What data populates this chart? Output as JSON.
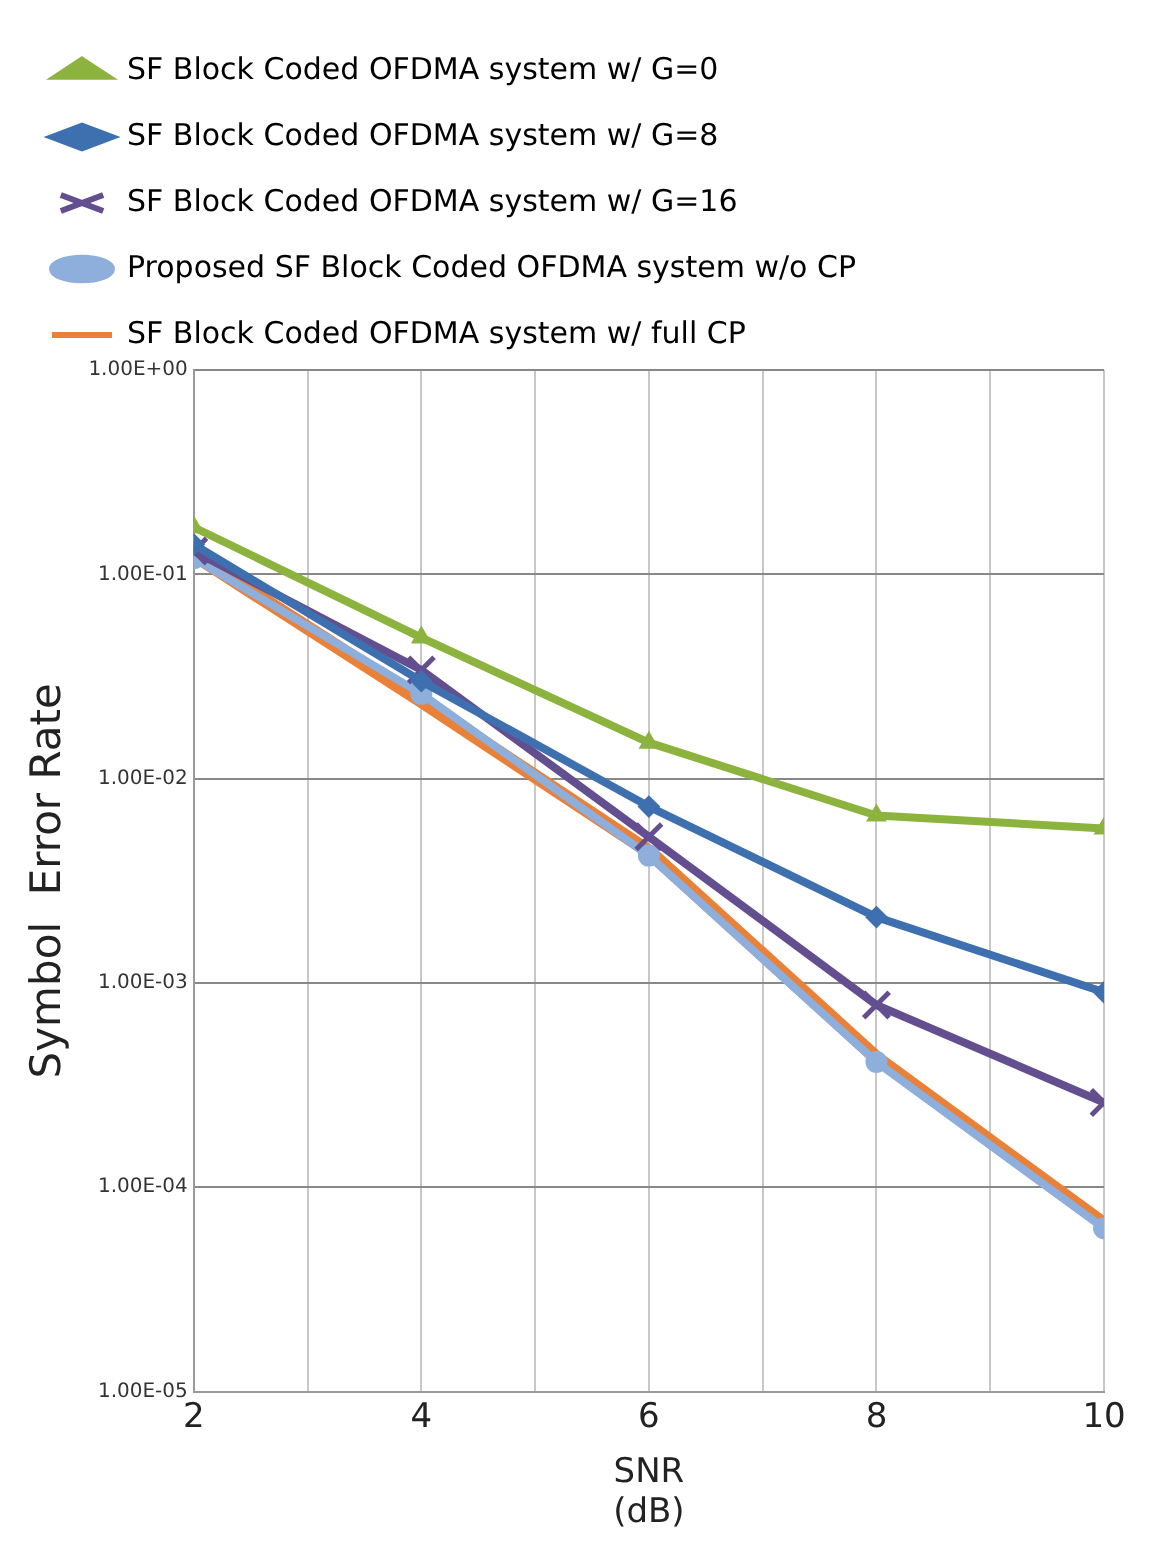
{
  "chart_data": {
    "type": "line",
    "xlabel": "SNR\n(dB)",
    "ylabel": "Symbol  Error Rate",
    "x": [
      2,
      4,
      6,
      8,
      10
    ],
    "series": [
      {
        "name": "SF Block Coded OFDMA system w/ G=0",
        "color": "#8db33f",
        "marker": "triangle",
        "values": [
          0.17,
          0.049,
          0.015,
          0.0066,
          0.0057
        ]
      },
      {
        "name": "SF Block Coded OFDMA system w/ G=8",
        "color": "#3e70b0",
        "marker": "diamond",
        "values": [
          0.14,
          0.03,
          0.0073,
          0.0021,
          0.0009
        ]
      },
      {
        "name": "SF Block Coded OFDMA system w/ G=16",
        "color": "#634f8f",
        "marker": "cross",
        "values": [
          0.13,
          0.034,
          0.0052,
          0.00078,
          0.00026
        ]
      },
      {
        "name": "Proposed SF Block Coded OFDMA system w/o CP",
        "color": "#8eaedb",
        "marker": "circle",
        "values": [
          0.12,
          0.026,
          0.0042,
          0.00041,
          6.3e-05
        ]
      },
      {
        "name": "SF Block Coded OFDMA system w/ full CP",
        "color": "#ea8139",
        "marker": "none",
        "values": [
          0.125,
          0.024,
          0.0044,
          0.00043,
          6.6e-05
        ]
      }
    ],
    "log": "y",
    "xlim": [
      2,
      10
    ],
    "xticks": [
      2,
      {
        "value": 3,
        "label": null
      },
      4,
      {
        "value": 5,
        "label": null
      },
      6,
      {
        "value": 7,
        "label": null
      },
      8,
      {
        "value": 9,
        "label": null
      },
      10
    ],
    "ylim": [
      1e-05,
      1
    ],
    "yticks": [
      {
        "value": 1e-05,
        "label": "1.00E-05"
      },
      {
        "value": 0.0001,
        "label": "1.00E-04"
      },
      {
        "value": 0.001,
        "label": "1.00E-03"
      },
      {
        "value": 0.01,
        "label": "1.00E-02"
      },
      {
        "value": 0.1,
        "label": "1.00E-01"
      },
      {
        "value": 1,
        "label": "1.00E+00"
      }
    ],
    "grid": true,
    "legend": "top"
  }
}
